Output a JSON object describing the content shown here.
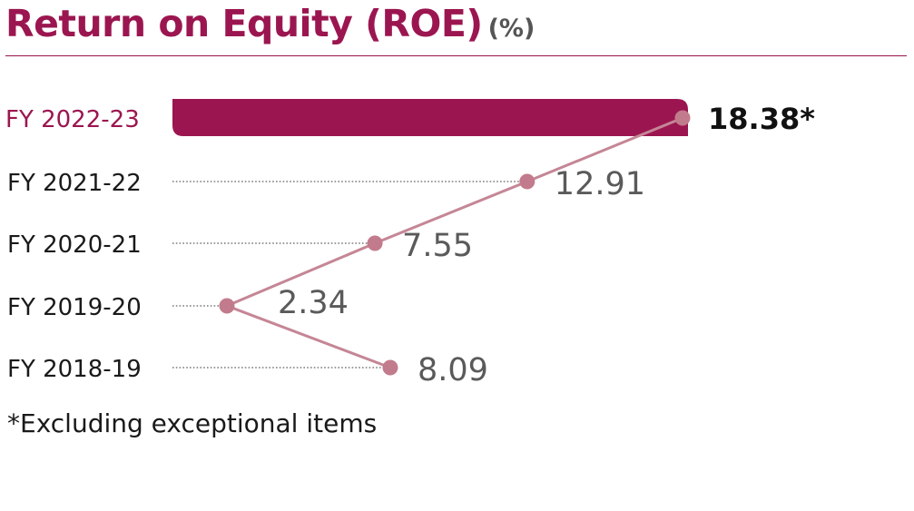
{
  "header": {
    "title": "Return on Equity (ROE)",
    "unit": "(%)"
  },
  "footnote": "*Excluding exceptional items",
  "colors": {
    "accent": "#9b1650",
    "line": "#c58696",
    "marker": "#c27b8c",
    "label_muted": "#5a5a5a",
    "label_dark": "#1a1a1a"
  },
  "chart_data": {
    "type": "bar",
    "title": "Return on Equity (ROE)",
    "unit": "(%)",
    "orientation": "horizontal",
    "categories": [
      "FY 2022-23",
      "FY 2021-22",
      "FY 2020-21",
      "FY 2019-20",
      "FY 2018-19"
    ],
    "values": [
      18.38,
      12.91,
      7.55,
      2.34,
      8.09
    ],
    "value_labels": [
      "18.38*",
      "12.91",
      "7.55",
      "2.34",
      "8.09"
    ],
    "highlighted_category": "FY 2022-23",
    "grid": false,
    "legend": "none",
    "overlay": "line connecting values"
  }
}
